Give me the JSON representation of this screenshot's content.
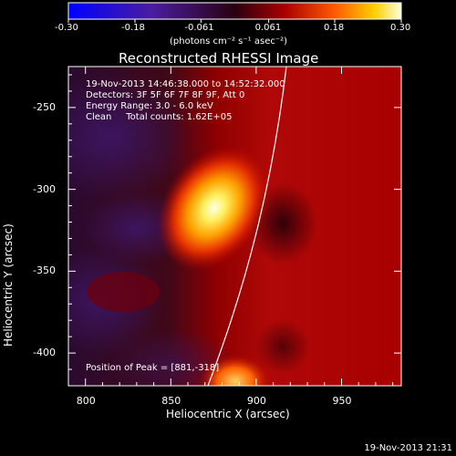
{
  "colorbar": {
    "ticks": [
      "-0.30",
      "-0.18",
      "-0.061",
      "0.061",
      "0.18",
      "0.30"
    ],
    "unit_label": "(photons cm⁻² s⁻¹ asec⁻²)"
  },
  "chart_data": {
    "type": "heatmap",
    "title": "Reconstructed RHESSI Image",
    "xlabel": "Heliocentric X (arcsec)",
    "ylabel": "Heliocentric Y (arcsec)",
    "xlim": [
      790,
      985
    ],
    "ylim": [
      -420,
      -225
    ],
    "x_ticks": [
      "800",
      "850",
      "900",
      "950"
    ],
    "y_ticks": [
      "-250",
      "-300",
      "-350",
      "-400"
    ],
    "colorbar_range": [
      -0.3,
      0.3
    ],
    "peak": [
      881,
      -318
    ],
    "grid": false,
    "annotations": {
      "time_range": "19-Nov-2013 14:46:38.000 to 14:52:32.000",
      "detectors": "Detectors: 3F 5F 6F 7F 8F 9F, Att 0",
      "energy": "Energy Range: 3.0 - 6.0 keV",
      "clean": "Clean     Total counts: 1.62E+05",
      "peak_text": "Position of Peak = [881,-318]"
    }
  },
  "footer": {
    "timestamp": "19-Nov-2013 21:31"
  }
}
